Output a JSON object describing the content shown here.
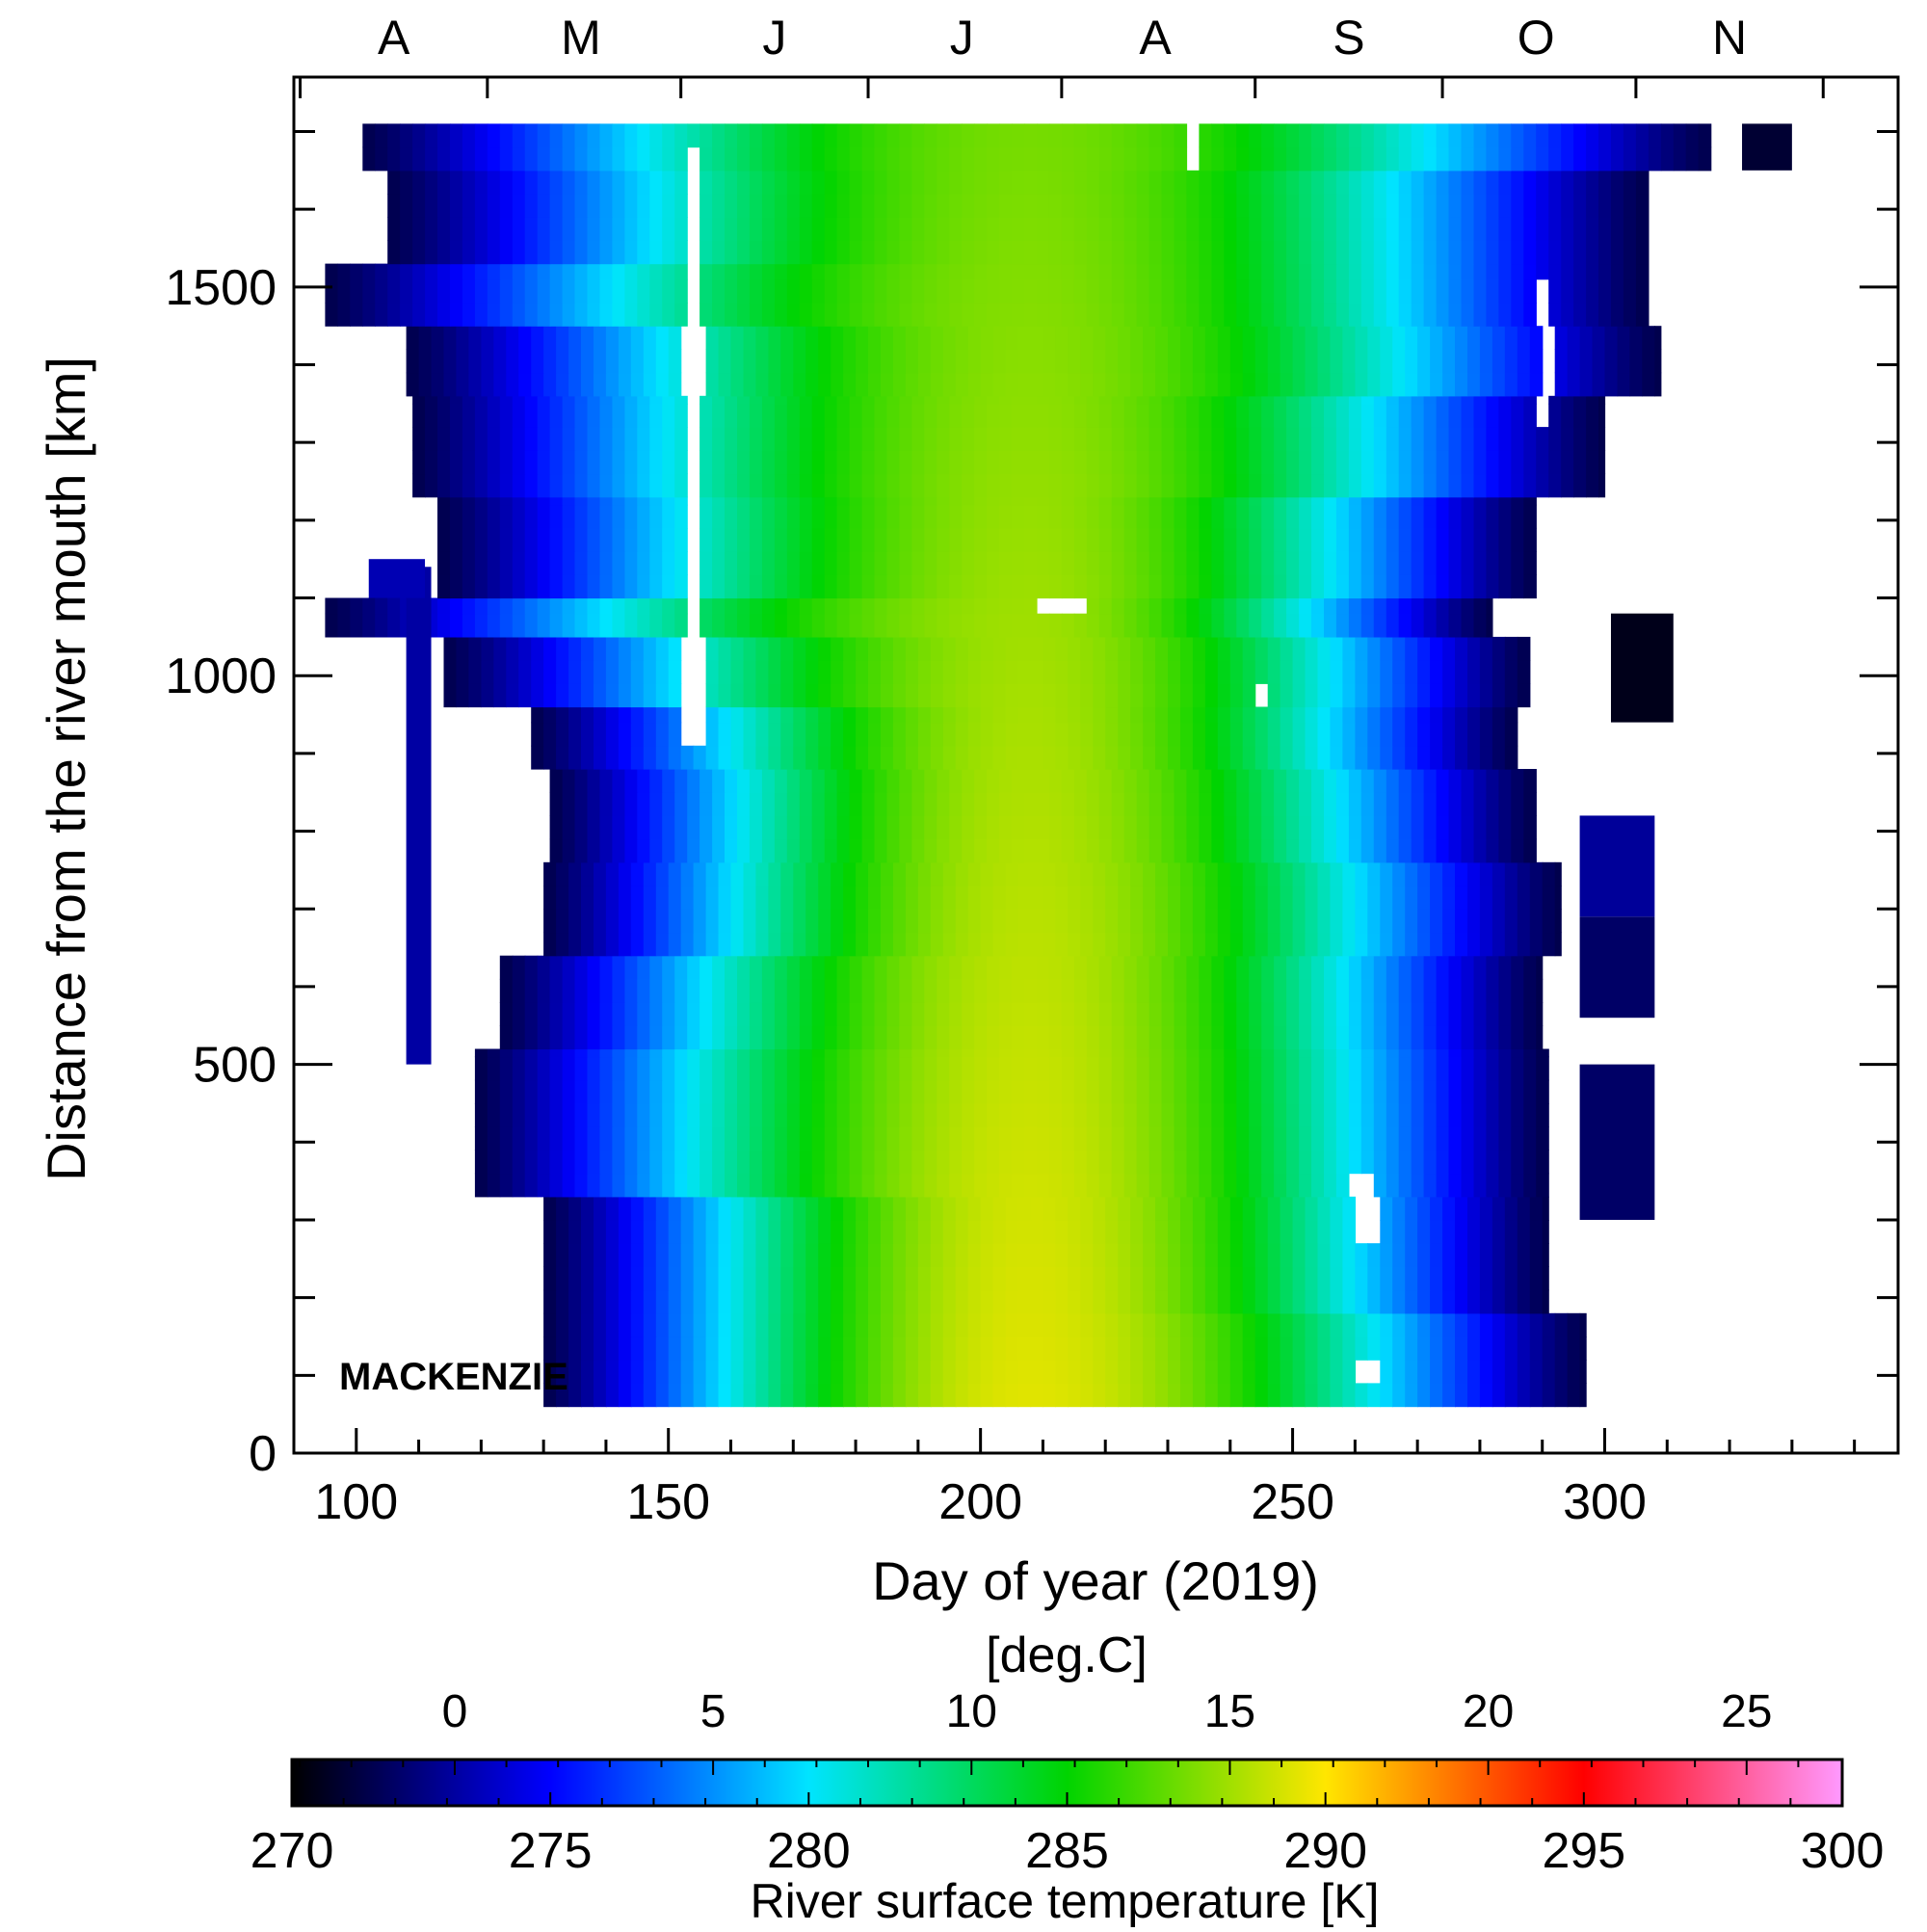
{
  "chart_data": {
    "type": "heatmap",
    "panel_label": "MACKENZIE",
    "xlabel": "Day of year (2019)",
    "ylabel": "Distance from the river mouth [km]",
    "xlim": [
      90,
      347
    ],
    "ylim": [
      0,
      1770
    ],
    "x_ticks": [
      100,
      150,
      200,
      250,
      300
    ],
    "y_ticks": [
      0,
      500,
      1000,
      1500
    ],
    "month_labels": [
      {
        "label": "A",
        "day": 106
      },
      {
        "label": "M",
        "day": 136
      },
      {
        "label": "J",
        "day": 167
      },
      {
        "label": "J",
        "day": 197
      },
      {
        "label": "A",
        "day": 228
      },
      {
        "label": "S",
        "day": 259
      },
      {
        "label": "O",
        "day": 289
      },
      {
        "label": "N",
        "day": 320
      }
    ],
    "colorbar": {
      "label": "River surface temperature [K]",
      "unit_label_top": "[deg.C]",
      "min": 270,
      "max": 300,
      "ticks_K": [
        270,
        275,
        280,
        285,
        290,
        295,
        300
      ],
      "ticks_C": [
        0,
        5,
        10,
        15,
        20,
        25
      ],
      "colors": [
        "#000000",
        "#0000ff",
        "#00e4ff",
        "#00d400",
        "#ffe600",
        "#ff0000",
        "#ff99ff"
      ]
    },
    "surface_model": {
      "description_units": "temperature in K as function of day of year and distance km",
      "peak_day": 208,
      "peak_temp_K": 289.5,
      "freeze_temp_K": 271.5,
      "river_rows": [
        {
          "dist": [
            60,
            180
          ],
          "start": 130,
          "end": 297
        },
        {
          "dist": [
            180,
            330
          ],
          "start": 130,
          "end": 291
        },
        {
          "dist": [
            330,
            520
          ],
          "start": 119,
          "end": 291
        },
        {
          "dist": [
            520,
            640
          ],
          "start": 123,
          "end": 290
        },
        {
          "dist": [
            640,
            760
          ],
          "start": 130,
          "end": 293
        },
        {
          "dist": [
            760,
            880
          ],
          "start": 131,
          "end": 289
        },
        {
          "dist": [
            880,
            960
          ],
          "start": 128,
          "end": 286
        },
        {
          "dist": [
            960,
            1050
          ],
          "start": 114,
          "end": 288
        },
        {
          "dist": [
            1050,
            1100
          ],
          "start": 95,
          "end": 282
        },
        {
          "dist": [
            1100,
            1230
          ],
          "start": 113,
          "end": 289
        },
        {
          "dist": [
            1230,
            1360
          ],
          "start": 109,
          "end": 300
        },
        {
          "dist": [
            1360,
            1450
          ],
          "start": 108,
          "end": 309
        },
        {
          "dist": [
            1450,
            1530
          ],
          "start": 95,
          "end": 307
        },
        {
          "dist": [
            1530,
            1650
          ],
          "start": 105,
          "end": 307
        },
        {
          "dist": [
            1650,
            1710
          ],
          "start": 101,
          "end": 317
        }
      ],
      "extra_blocks": [
        {
          "dist": [
            500,
            1140
          ],
          "start": 108,
          "end": 112,
          "temp": 273.2
        },
        {
          "dist": [
            1100,
            1150
          ],
          "start": 102,
          "end": 111,
          "temp": 273.5
        },
        {
          "dist": [
            300,
            500
          ],
          "start": 296,
          "end": 308,
          "temp": 272.0
        },
        {
          "dist": [
            560,
            690
          ],
          "start": 296,
          "end": 308,
          "temp": 272.0
        },
        {
          "dist": [
            690,
            820
          ],
          "start": 296,
          "end": 308,
          "temp": 273.0
        },
        {
          "dist": [
            940,
            1080
          ],
          "start": 301,
          "end": 311,
          "temp": 270.5
        },
        {
          "dist": [
            1650,
            1710
          ],
          "start": 322,
          "end": 330,
          "temp": 271.0
        }
      ],
      "gaps": [
        {
          "dist": [
            900,
            1670
          ],
          "start": 152,
          "end": 155
        },
        {
          "dist": [
            1060,
            1100
          ],
          "start": 209,
          "end": 216
        },
        {
          "dist": [
            260,
            360
          ],
          "start": 259,
          "end": 263
        },
        {
          "dist": [
            70,
            120
          ],
          "start": 259,
          "end": 263
        },
        {
          "dist": [
            1300,
            1500
          ],
          "start": 289,
          "end": 291
        },
        {
          "dist": [
            960,
            990
          ],
          "start": 244,
          "end": 246
        },
        {
          "dist": [
            1640,
            1690
          ],
          "start": 232,
          "end": 234
        }
      ]
    }
  }
}
